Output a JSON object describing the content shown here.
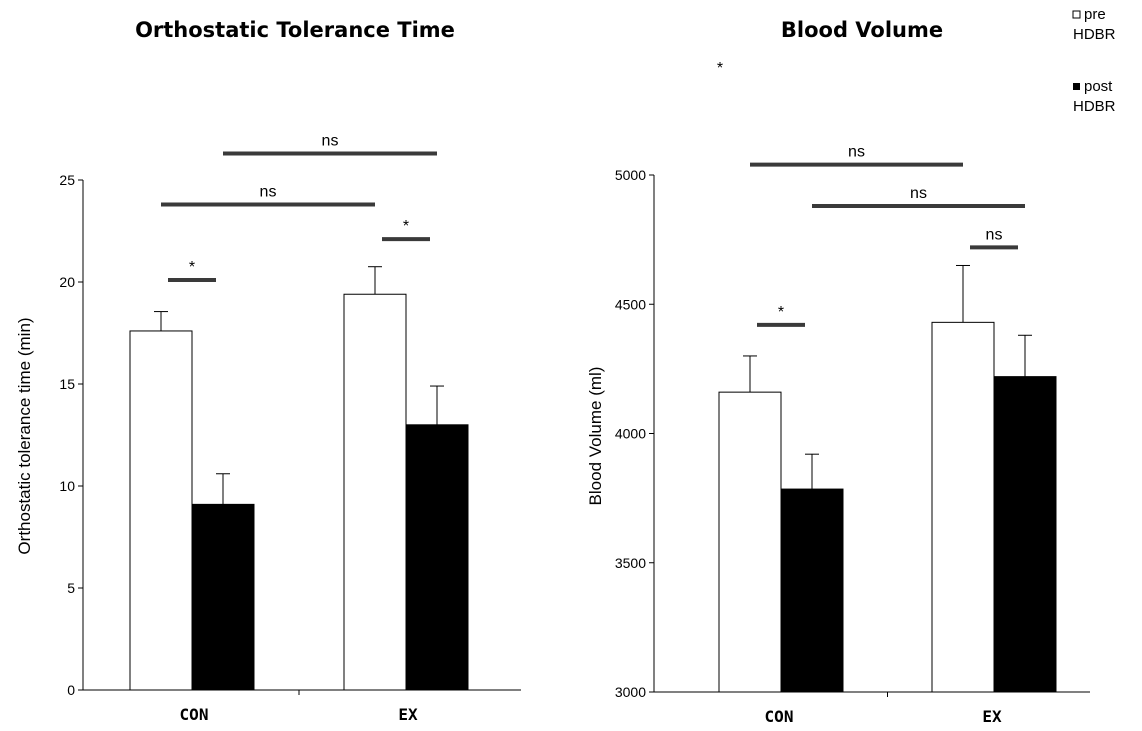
{
  "legend": {
    "pre": {
      "line1": "pre",
      "line2": "HDBR",
      "color": "#ffffff"
    },
    "post": {
      "line1": "post",
      "line2": "HDBR",
      "color": "#000000"
    }
  },
  "stray_asterisk": "*",
  "chart_data": [
    {
      "type": "bar",
      "title": "Orthostatic Tolerance Time",
      "ylabel": "Orthostatic tolerance time (min)",
      "xlabel": "",
      "categories": [
        "CON",
        "EX"
      ],
      "ylim": [
        0,
        25
      ],
      "yticks": [
        0,
        5,
        10,
        15,
        20,
        25
      ],
      "grid": false,
      "series": [
        {
          "name": "pre HDBR",
          "color": "#ffffff",
          "values": [
            17.6,
            19.4
          ],
          "errors": [
            0.95,
            1.35
          ]
        },
        {
          "name": "post HDBR",
          "color": "#000000",
          "values": [
            9.1,
            13.0
          ],
          "errors": [
            1.5,
            1.9
          ]
        }
      ],
      "annotations": [
        {
          "text": "*",
          "from": {
            "category": 0,
            "series": 0
          },
          "to": {
            "category": 0,
            "series": 1
          },
          "y": 20.1
        },
        {
          "text": "*",
          "from": {
            "category": 1,
            "series": 0
          },
          "to": {
            "category": 1,
            "series": 1
          },
          "y": 22.1
        },
        {
          "text": "ns",
          "from": {
            "category": 0,
            "series": 0
          },
          "to": {
            "category": 1,
            "series": 0
          },
          "y": 23.8
        },
        {
          "text": "ns",
          "from": {
            "category": 0,
            "series": 1
          },
          "to": {
            "category": 1,
            "series": 1
          },
          "y": 26.3
        }
      ]
    },
    {
      "type": "bar",
      "title": "Blood Volume",
      "ylabel": "Blood Volume (ml)",
      "xlabel": "",
      "categories": [
        "CON",
        "EX"
      ],
      "ylim": [
        3000,
        5000
      ],
      "yticks": [
        3000,
        3500,
        4000,
        4500,
        5000
      ],
      "grid": false,
      "series": [
        {
          "name": "pre HDBR",
          "color": "#ffffff",
          "values": [
            4160,
            4430
          ],
          "errors": [
            140,
            220
          ]
        },
        {
          "name": "post HDBR",
          "color": "#000000",
          "values": [
            3785,
            4220
          ],
          "errors": [
            135,
            160
          ]
        }
      ],
      "annotations": [
        {
          "text": "*",
          "from": {
            "category": 0,
            "series": 0
          },
          "to": {
            "category": 0,
            "series": 1
          },
          "y": 4420
        },
        {
          "text": "ns",
          "from": {
            "category": 1,
            "series": 0
          },
          "to": {
            "category": 1,
            "series": 1
          },
          "y": 4720
        },
        {
          "text": "ns",
          "from": {
            "category": 0,
            "series": 0
          },
          "to": {
            "category": 1,
            "series": 0
          },
          "y": 5040
        },
        {
          "text": "ns",
          "from": {
            "category": 0,
            "series": 1
          },
          "to": {
            "category": 1,
            "series": 1
          },
          "y": 4880
        }
      ]
    }
  ]
}
